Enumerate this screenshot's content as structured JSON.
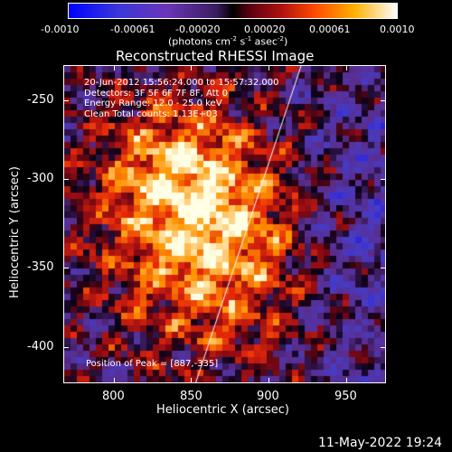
{
  "colorbar": {
    "labels": [
      "-0.0010",
      "-0.00061",
      "-0.00020",
      "0.00020",
      "0.00061",
      "0.0010"
    ],
    "unit": "(photons cm",
    "unit_sup1": "-2",
    "unit_mid": " s",
    "unit_sup2": "-1",
    "unit_mid2": " asec",
    "unit_sup3": "-2",
    "unit_end": ")"
  },
  "plot": {
    "title": "Reconstructed RHESSI Image",
    "info_lines": [
      "20-Jun-2012 15:56:24.000 to 15:57:32.000",
      "Detectors: 3F 5F 6F 7F 8F, Att 0",
      "Energy Range: 12.0 - 25.0 keV",
      "Clean     Total counts: 1.13E+03"
    ],
    "peak_text": "Position of Peak = [887,-335]",
    "xlabel": "Heliocentric X (arcsec)",
    "ylabel": "Heliocentric Y (arcsec)",
    "xticks": [
      "800",
      "850",
      "900",
      "950"
    ],
    "yticks": [
      "-250",
      "-300",
      "-350",
      "-400"
    ]
  },
  "footer": {
    "timestamp": "11-May-2022 19:24"
  }
}
